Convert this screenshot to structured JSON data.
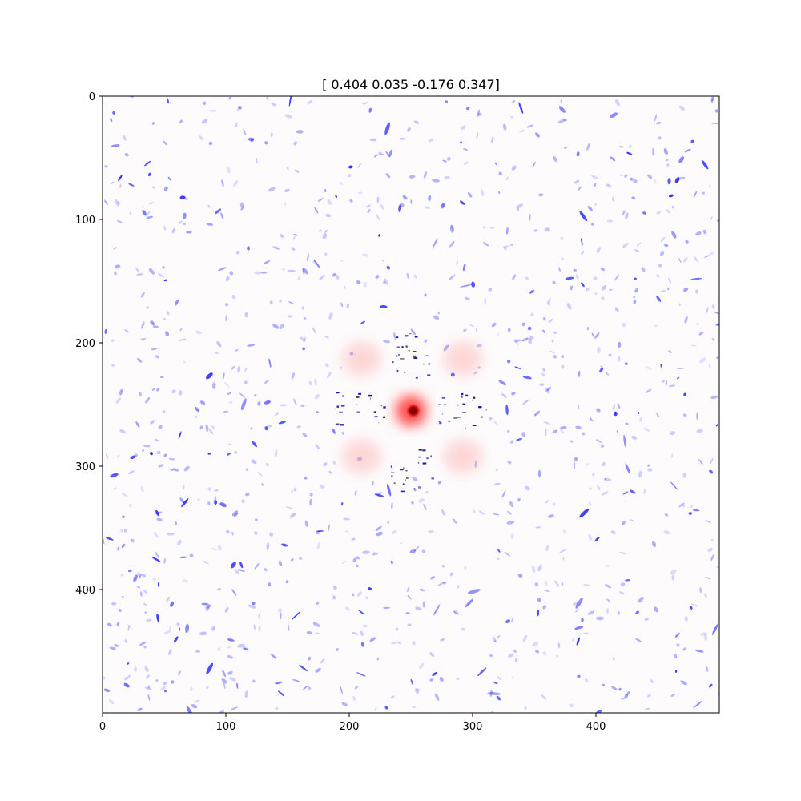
{
  "chart_data": {
    "type": "heatmap",
    "title": "[ 0.404  0.035 -0.176  0.347]",
    "xlabel": "",
    "ylabel": "",
    "xlim": [
      0,
      500
    ],
    "ylim": [
      500,
      0
    ],
    "x_ticks": [
      0,
      100,
      200,
      300,
      400
    ],
    "y_ticks": [
      0,
      100,
      200,
      300,
      400
    ],
    "grid": false,
    "colormap": "bwr",
    "colors": {
      "positive": "#ff0000",
      "negative": "#0000ff",
      "peak": "#8b0000",
      "background": "#fdfbfc"
    },
    "positive_peak": {
      "x": 252,
      "y": 255
    },
    "positive_lobes": [
      {
        "center": [
          250,
          255
        ],
        "size": [
          34,
          34
        ],
        "intensity": 0.8
      },
      {
        "center": [
          210,
          213
        ],
        "size": [
          40,
          36
        ],
        "intensity": 0.12
      },
      {
        "center": [
          292,
          213
        ],
        "size": [
          40,
          36
        ],
        "intensity": 0.12
      },
      {
        "center": [
          210,
          292
        ],
        "size": [
          40,
          36
        ],
        "intensity": 0.12
      },
      {
        "center": [
          292,
          292
        ],
        "size": [
          40,
          36
        ],
        "intensity": 0.12
      }
    ],
    "noise": "scattered negative (blue) speckles across the whole field"
  }
}
